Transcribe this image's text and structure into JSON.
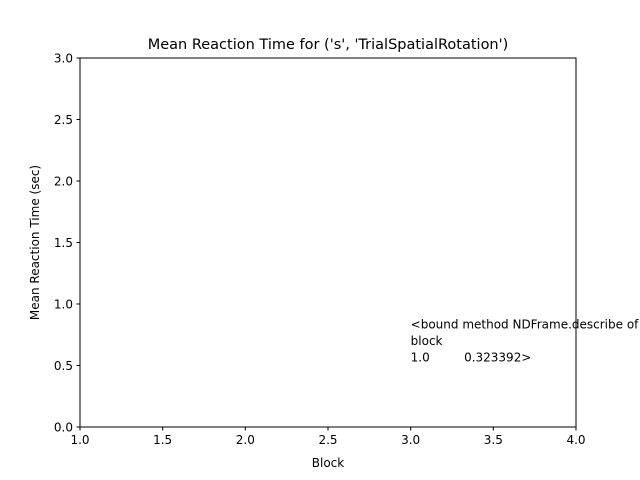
{
  "chart_data": {
    "type": "line",
    "title": "Mean Reaction Time for ('s', 'TrialSpatialRotation')",
    "xlabel": "Block",
    "ylabel": "Mean Reaction Time (sec)",
    "xlim": [
      1.0,
      4.0
    ],
    "ylim": [
      0.0,
      3.0
    ],
    "xticks": [
      1.0,
      1.5,
      2.0,
      2.5,
      3.0,
      3.5,
      4.0
    ],
    "xtick_labels": [
      "1.0",
      "1.5",
      "2.0",
      "2.5",
      "3.0",
      "3.5",
      "4.0"
    ],
    "yticks": [
      0.0,
      0.5,
      1.0,
      1.5,
      2.0,
      2.5,
      3.0
    ],
    "ytick_labels": [
      "0.0",
      "0.5",
      "1.0",
      "1.5",
      "2.0",
      "2.5",
      "3.0"
    ],
    "grid": false,
    "series": [],
    "annotation": {
      "x": 3.0,
      "y": 0.5,
      "lines": [
        "<bound method NDFrame.describe of",
        "block",
        "1.0         0.323392>"
      ]
    }
  }
}
